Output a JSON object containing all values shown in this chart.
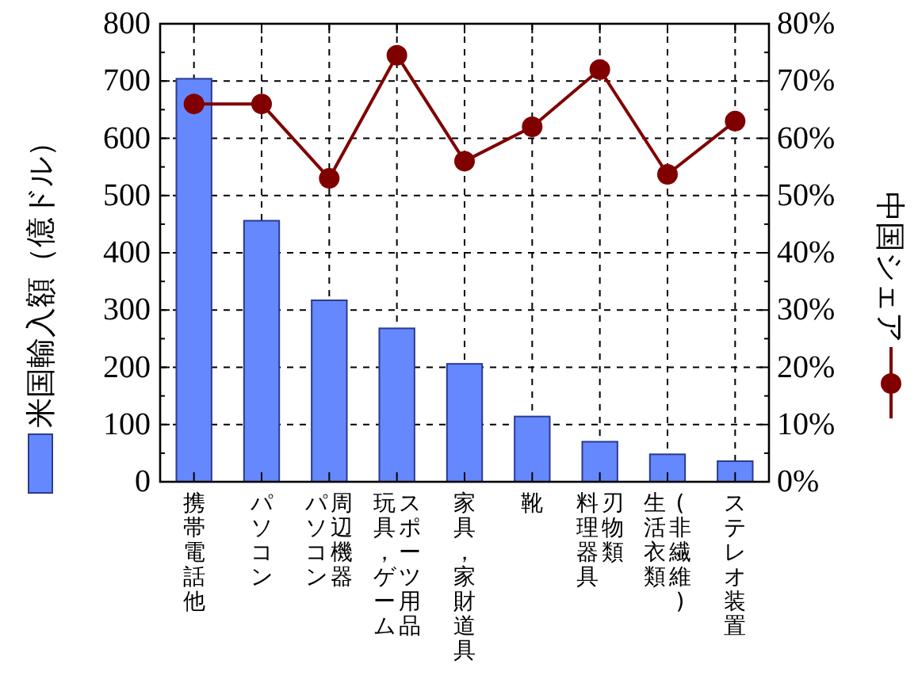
{
  "chart_data": {
    "type": "bar",
    "categories": [
      [
        "携帯電話他"
      ],
      [
        "パソコン"
      ],
      [
        "パソコン",
        "周辺機器"
      ],
      [
        "玩具，ゲーム",
        "スポーツ用品"
      ],
      [
        "家具，家財道具"
      ],
      [
        "靴"
      ],
      [
        "料理器具",
        "刃物類"
      ],
      [
        "生活衣類",
        "(非繊維)"
      ],
      [
        "ステレオ装置"
      ]
    ],
    "series": [
      {
        "color": "#6688ff",
        "values": [
          704,
          456,
          317,
          268,
          206,
          114,
          70,
          48,
          36
        ]
      },
      {
        "type": "line",
        "axis": "y2",
        "color": "#800000",
        "values": [
          66,
          66,
          53,
          74.5,
          56,
          62,
          72,
          53.7,
          63
        ]
      }
    ],
    "ylim": [
      0,
      800
    ],
    "yticks": [
      0,
      100,
      200,
      300,
      400,
      500,
      600,
      700,
      800
    ],
    "y2lim": [
      0,
      80
    ],
    "y2ticks": [
      {
        "value": 0,
        "label": "0%"
      },
      {
        "value": 10,
        "label": "10%"
      },
      {
        "value": 20,
        "label": "20%"
      },
      {
        "value": 30,
        "label": "30%"
      },
      {
        "value": 40,
        "label": "40%"
      },
      {
        "value": 50,
        "label": "50%"
      },
      {
        "value": 60,
        "label": "60%"
      },
      {
        "value": 70,
        "label": "70%"
      },
      {
        "value": 80,
        "label": "80%"
      }
    ],
    "ylabel": "米国輸入額（億ドル）",
    "y2label": "中国シェア",
    "grid": true,
    "marker": "circle",
    "line_style": "solid"
  }
}
